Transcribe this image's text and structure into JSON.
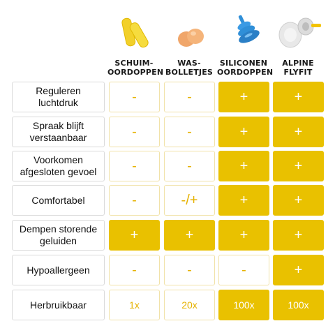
{
  "columns": [
    {
      "line1": "SCHUIM-",
      "line2": "OORDOPPEN"
    },
    {
      "line1": "WAS-",
      "line2": "BOLLETJES"
    },
    {
      "line1": "SILICONEN",
      "line2": "OORDOPPEN"
    },
    {
      "line1": "ALPINE",
      "line2": "FLYFIT"
    }
  ],
  "rows": [
    {
      "label": "Reguleren luchtdruk",
      "values": [
        "-",
        "-",
        "+",
        "+"
      ],
      "styles": [
        "white",
        "white",
        "yellow",
        "yellow"
      ]
    },
    {
      "label": "Spraak blijft verstaanbaar",
      "values": [
        "-",
        "-",
        "+",
        "+"
      ],
      "styles": [
        "white",
        "white",
        "yellow",
        "yellow"
      ]
    },
    {
      "label": "Voorkomen afgesloten gevoel",
      "values": [
        "-",
        "-",
        "+",
        "+"
      ],
      "styles": [
        "white",
        "white",
        "yellow",
        "yellow"
      ]
    },
    {
      "label": "Comfortabel",
      "values": [
        "-",
        "-/+",
        "+",
        "+"
      ],
      "styles": [
        "white",
        "white",
        "yellow",
        "yellow"
      ]
    },
    {
      "label": "Dempen storende geluiden",
      "values": [
        "+",
        "+",
        "+",
        "+"
      ],
      "styles": [
        "yellow",
        "yellow",
        "yellow",
        "yellow"
      ]
    },
    {
      "label": "Hypoallergeen",
      "values": [
        "-",
        "-",
        "-",
        "+"
      ],
      "styles": [
        "white",
        "white",
        "white",
        "yellow"
      ]
    },
    {
      "label": "Herbruikbaar",
      "values": [
        "1x",
        "20x",
        "100x",
        "100x"
      ],
      "styles": [
        "white",
        "white",
        "yellow",
        "yellow"
      ]
    }
  ],
  "colors": {
    "accent": "#e9c100",
    "foam": "#f2d02a",
    "wax": "#f0a66a",
    "silicone": "#2f8fd8",
    "flyfit_tip": "#f3c300"
  },
  "icons": [
    "foam-earplugs-image",
    "wax-balls-image",
    "silicone-earplug-image",
    "alpine-flyfit-image"
  ]
}
